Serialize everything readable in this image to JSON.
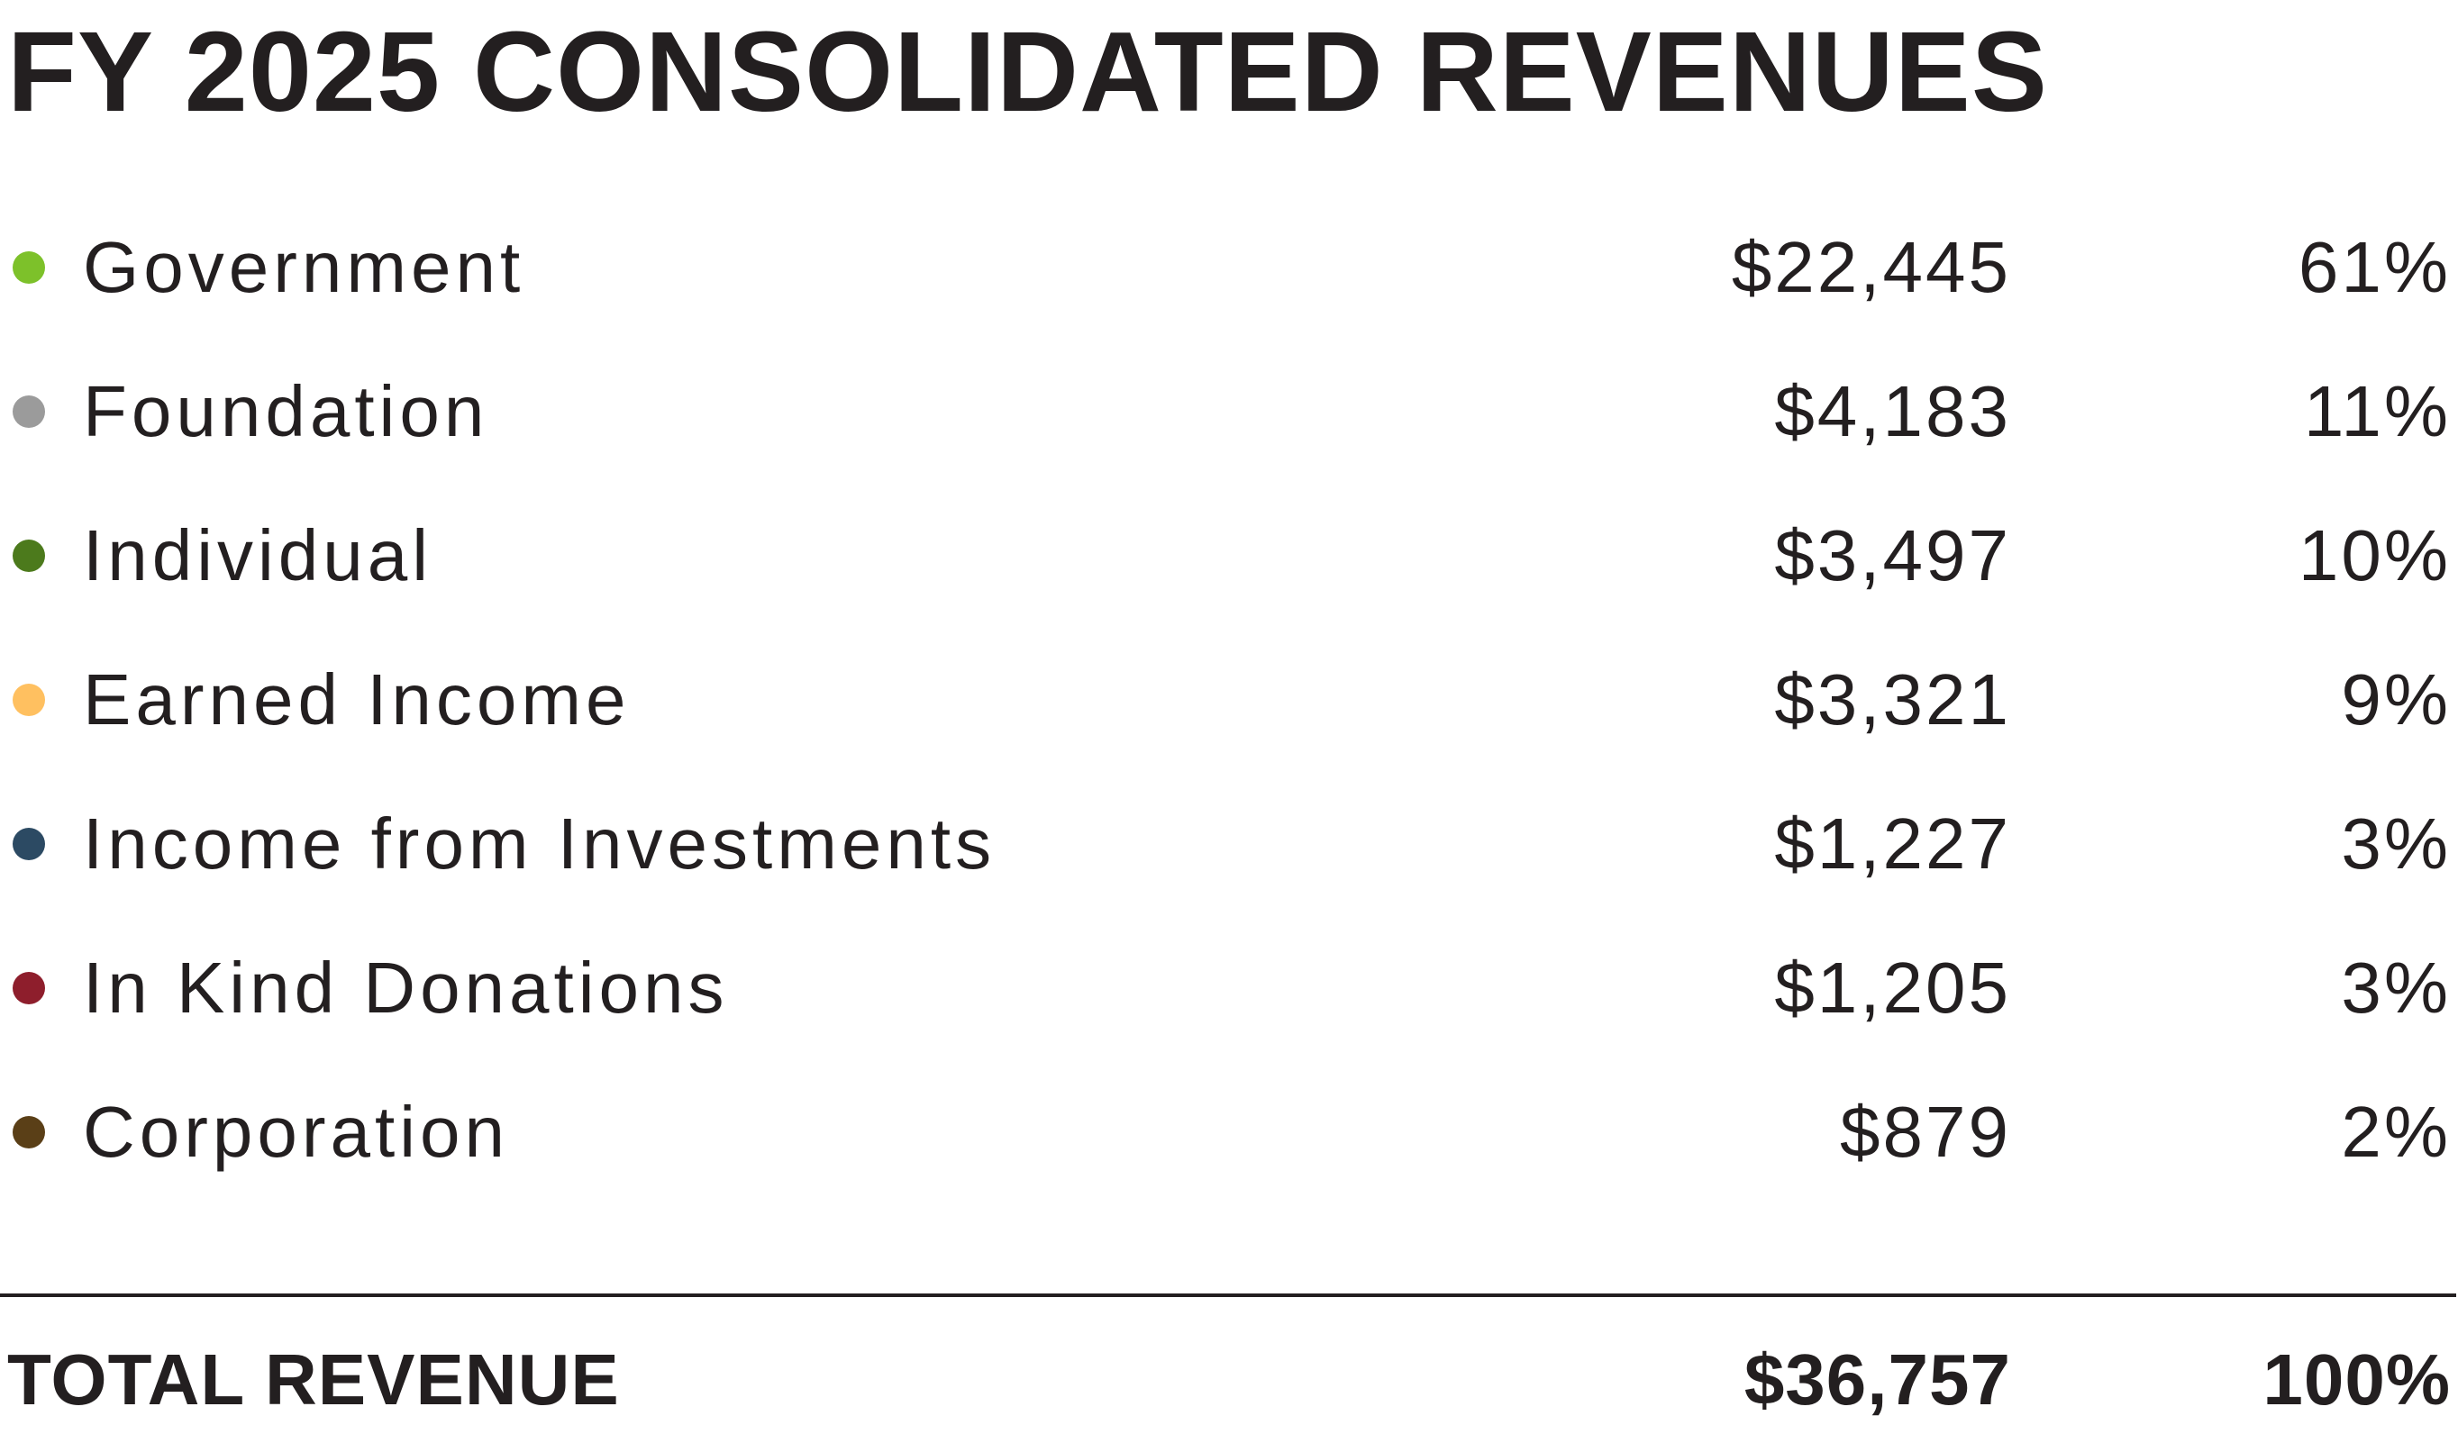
{
  "title": "FY 2025 CONSOLIDATED REVENUES",
  "rows": [
    {
      "label": "Government",
      "amount": "$22,445",
      "percent": "61%",
      "color": "#7dc12a"
    },
    {
      "label": "Foundation",
      "amount": "$4,183",
      "percent": "11%",
      "color": "#9b9b9b"
    },
    {
      "label": "Individual",
      "amount": "$3,497",
      "percent": "10%",
      "color": "#4c7a1c"
    },
    {
      "label": "Earned Income",
      "amount": "$3,321",
      "percent": "9%",
      "color": "#ffc060"
    },
    {
      "label": "Income from Investments",
      "amount": "$1,227",
      "percent": "3%",
      "color": "#2c4a63"
    },
    {
      "label": "In Kind Donations",
      "amount": "$1,205",
      "percent": "3%",
      "color": "#8e1e2c"
    },
    {
      "label": "Corporation",
      "amount": "$879",
      "percent": "2%",
      "color": "#5a3f17"
    }
  ],
  "total": {
    "label": "TOTAL REVENUE",
    "amount": "$36,757",
    "percent": "100%"
  }
}
